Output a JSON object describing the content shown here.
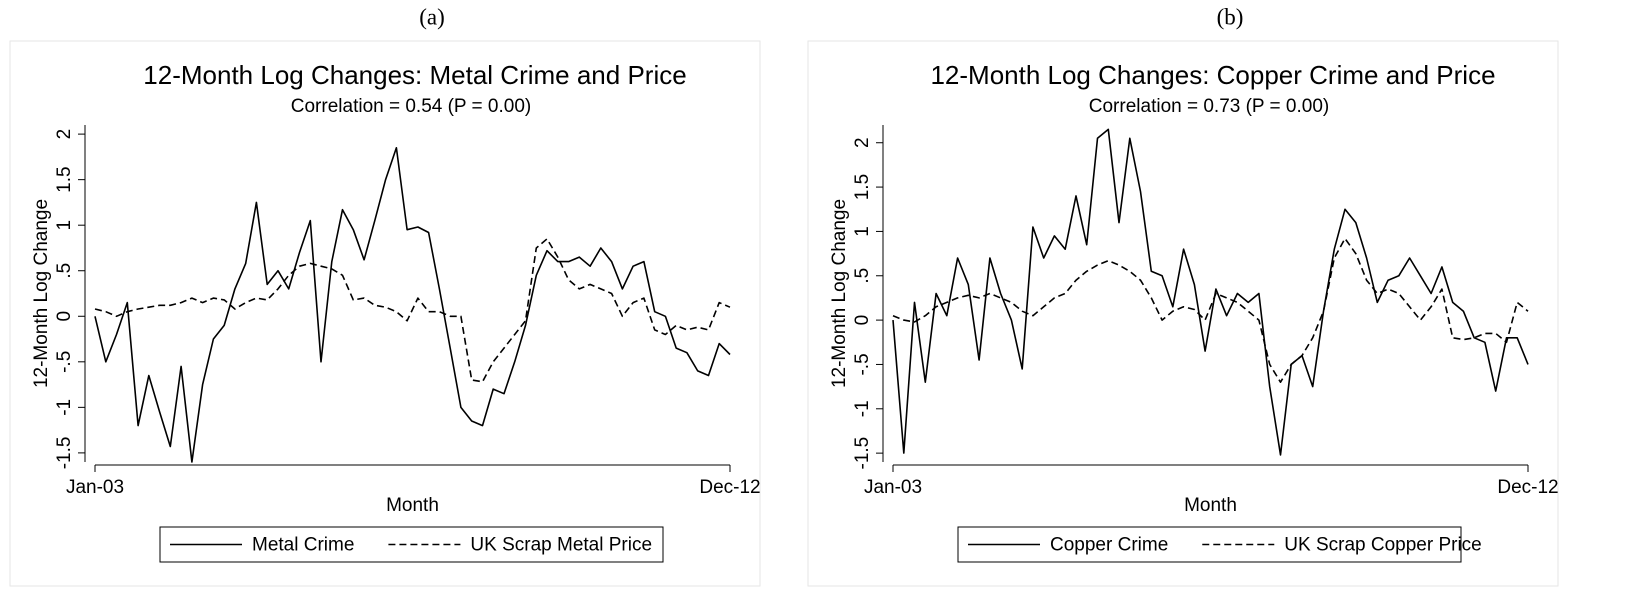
{
  "chart_data": [
    {
      "type": "line",
      "panel_label": "(a)",
      "title": "12-Month Log Changes: Metal Crime and Price",
      "subtitle": "Correlation = 0.54 (P = 0.00)",
      "y_label": "12-Month Log Change",
      "x_label": "Month",
      "categories": [
        "Jan-03",
        null,
        null,
        null,
        null,
        null,
        null,
        null,
        null,
        null,
        null,
        null,
        null,
        null,
        null,
        null,
        null,
        null,
        null,
        null,
        null,
        null,
        null,
        null,
        null,
        null,
        null,
        null,
        null,
        null,
        null,
        null,
        null,
        null,
        null,
        null,
        null,
        null,
        null,
        null,
        null,
        null,
        null,
        null,
        null,
        null,
        null,
        null,
        null,
        null,
        null,
        null,
        null,
        null,
        null,
        null,
        null,
        null,
        null,
        "Dec-12"
      ],
      "series": [
        {
          "name": "Metal Crime",
          "color": "#000000",
          "style": "solid",
          "values": [
            0,
            -0.5,
            -0.2,
            0.15,
            -1.2,
            -0.65,
            -1.05,
            -1.43,
            -0.55,
            -1.6,
            -0.75,
            -0.25,
            -0.1,
            0.3,
            0.58,
            1.25,
            0.35,
            0.5,
            0.3,
            0.7,
            1.05,
            -0.5,
            0.6,
            1.17,
            0.95,
            0.62,
            1.05,
            1.5,
            1.85,
            0.95,
            0.98,
            0.92,
            0.3,
            -0.35,
            -1.0,
            -1.15,
            -1.2,
            -0.8,
            -0.85,
            -0.5,
            -0.1,
            0.45,
            0.72,
            0.6,
            0.6,
            0.65,
            0.55,
            0.75,
            0.6,
            0.3,
            0.55,
            0.6,
            0.05,
            0.0,
            -0.35,
            -0.4,
            -0.6,
            -0.65,
            -0.3,
            -0.42
          ]
        },
        {
          "name": "UK Scrap Metal Price",
          "color": "#000000",
          "style": "dashed",
          "values": [
            0.08,
            0.05,
            0.0,
            0.05,
            0.08,
            0.1,
            0.12,
            0.12,
            0.15,
            0.2,
            0.15,
            0.2,
            0.18,
            0.08,
            0.15,
            0.2,
            0.18,
            0.3,
            0.45,
            0.55,
            0.58,
            0.55,
            0.52,
            0.45,
            0.18,
            0.2,
            0.12,
            0.1,
            0.05,
            -0.05,
            0.2,
            0.05,
            0.05,
            0.0,
            0.0,
            -0.7,
            -0.72,
            -0.5,
            -0.35,
            -0.2,
            -0.05,
            0.75,
            0.85,
            0.65,
            0.4,
            0.3,
            0.35,
            0.3,
            0.25,
            0.0,
            0.15,
            0.2,
            -0.15,
            -0.2,
            -0.1,
            -0.15,
            -0.12,
            -0.15,
            0.15,
            0.1
          ]
        }
      ],
      "ylim": [
        -1.6,
        2.1
      ],
      "yticks": [
        2,
        1.5,
        1,
        {
          "value": 0.5,
          "label": ".5"
        },
        0,
        {
          "value": -0.5,
          "label": "-.5"
        },
        -1,
        -1.5
      ],
      "grid": false,
      "legend": "bottom"
    },
    {
      "type": "line",
      "panel_label": "(b)",
      "title": "12-Month Log Changes: Copper Crime and Price",
      "subtitle": "Correlation = 0.73 (P = 0.00)",
      "y_label": "12-Month Log Change",
      "x_label": "Month",
      "categories": [
        "Jan-03",
        null,
        null,
        null,
        null,
        null,
        null,
        null,
        null,
        null,
        null,
        null,
        null,
        null,
        null,
        null,
        null,
        null,
        null,
        null,
        null,
        null,
        null,
        null,
        null,
        null,
        null,
        null,
        null,
        null,
        null,
        null,
        null,
        null,
        null,
        null,
        null,
        null,
        null,
        null,
        null,
        null,
        null,
        null,
        null,
        null,
        null,
        null,
        null,
        null,
        null,
        null,
        null,
        null,
        null,
        null,
        null,
        null,
        null,
        "Dec-12"
      ],
      "series": [
        {
          "name": "Copper Crime",
          "color": "#000000",
          "style": "solid",
          "values": [
            0,
            -1.5,
            0.2,
            -0.7,
            0.3,
            0.05,
            0.7,
            0.4,
            -0.45,
            0.7,
            0.3,
            0.0,
            -0.55,
            1.05,
            0.7,
            0.95,
            0.8,
            1.4,
            0.85,
            2.05,
            2.15,
            1.1,
            2.05,
            1.45,
            0.55,
            0.5,
            0.15,
            0.8,
            0.4,
            -0.35,
            0.35,
            0.05,
            0.3,
            0.2,
            0.3,
            -0.75,
            -1.52,
            -0.5,
            -0.4,
            -0.75,
            0.1,
            0.8,
            1.25,
            1.1,
            0.7,
            0.2,
            0.45,
            0.5,
            0.7,
            0.5,
            0.3,
            0.6,
            0.2,
            0.1,
            -0.2,
            -0.25,
            -0.8,
            -0.2,
            -0.2,
            -0.5
          ]
        },
        {
          "name": "UK Scrap Copper Price",
          "color": "#000000",
          "style": "dashed",
          "values": [
            0.05,
            0.0,
            -0.02,
            0.05,
            0.15,
            0.2,
            0.25,
            0.28,
            0.25,
            0.3,
            0.25,
            0.2,
            0.1,
            0.05,
            0.15,
            0.25,
            0.3,
            0.45,
            0.55,
            0.62,
            0.67,
            0.62,
            0.55,
            0.45,
            0.25,
            0.0,
            0.1,
            0.15,
            0.12,
            0.0,
            0.3,
            0.25,
            0.2,
            0.1,
            0.0,
            -0.5,
            -0.7,
            -0.5,
            -0.4,
            -0.2,
            0.1,
            0.7,
            0.92,
            0.75,
            0.45,
            0.3,
            0.35,
            0.3,
            0.15,
            0.0,
            0.15,
            0.35,
            -0.2,
            -0.22,
            -0.2,
            -0.15,
            -0.15,
            -0.25,
            0.2,
            0.1
          ]
        }
      ],
      "ylim": [
        -1.6,
        2.2
      ],
      "yticks": [
        2,
        1.5,
        1,
        {
          "value": 0.5,
          "label": ".5"
        },
        0,
        {
          "value": -0.5,
          "label": "-.5"
        },
        -1,
        -1.5
      ],
      "grid": false,
      "legend": "bottom"
    }
  ]
}
